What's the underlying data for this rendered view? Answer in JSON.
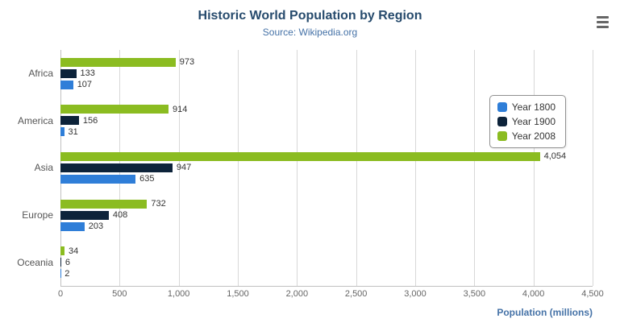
{
  "header": {
    "title": "Historic World Population by Region",
    "subtitle": "Source: Wikipedia.org"
  },
  "menu": {
    "icon": "hamburger-export-menu"
  },
  "chart_data": {
    "type": "bar",
    "orientation": "horizontal",
    "title": "Historic World Population by Region",
    "subtitle": "Source: Wikipedia.org",
    "categories": [
      "Africa",
      "America",
      "Asia",
      "Europe",
      "Oceania"
    ],
    "series": [
      {
        "name": "Year 1800",
        "color": "#2f7ed8",
        "values": [
          107,
          31,
          635,
          203,
          2
        ],
        "labels": [
          "107",
          "31",
          "635",
          "203",
          "2"
        ]
      },
      {
        "name": "Year 1900",
        "color": "#0d233a",
        "values": [
          133,
          156,
          947,
          408,
          6
        ],
        "labels": [
          "133",
          "156",
          "947",
          "408",
          "6"
        ]
      },
      {
        "name": "Year 2008",
        "color": "#8bbc21",
        "values": [
          973,
          914,
          4054,
          732,
          34
        ],
        "labels": [
          "973",
          "914",
          "4,054",
          "732",
          "34"
        ]
      }
    ],
    "xlabel": "Population (millions)",
    "ylabel": "",
    "xlim": [
      0,
      4500
    ],
    "xticks": [
      {
        "value": 0,
        "label": "0"
      },
      {
        "value": 500,
        "label": "500"
      },
      {
        "value": 1000,
        "label": "1,000"
      },
      {
        "value": 1500,
        "label": "1,500"
      },
      {
        "value": 2000,
        "label": "2,000"
      },
      {
        "value": 2500,
        "label": "2,500"
      },
      {
        "value": 3000,
        "label": "3,000"
      },
      {
        "value": 3500,
        "label": "3,500"
      },
      {
        "value": 4000,
        "label": "4,000"
      },
      {
        "value": 4500,
        "label": "4,500"
      }
    ],
    "grid": true,
    "legend_position": "right"
  }
}
